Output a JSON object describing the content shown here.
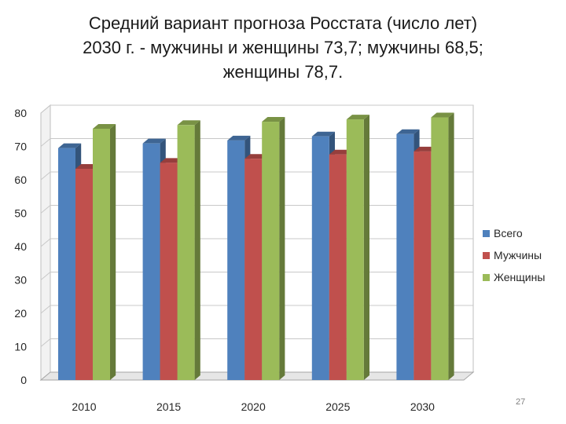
{
  "slide": {
    "title_lines": [
      "Средний вариант прогноза  Росстата (число лет)",
      "2030 г. - мужчины и женщины 73,7; мужчины  68,5;",
      "женщины   78,7."
    ],
    "page_number": "27"
  },
  "chart_data": {
    "type": "bar",
    "style": "3d-clustered-column",
    "categories": [
      "2010",
      "2015",
      "2020",
      "2025",
      "2030"
    ],
    "series": [
      {
        "name": "Всего",
        "color": "#4f81bd",
        "values": [
          69.5,
          70.9,
          71.8,
          73.0,
          73.7
        ]
      },
      {
        "name": "Мужчины",
        "color": "#c0504d",
        "values": [
          63.3,
          65.1,
          66.3,
          67.6,
          68.5
        ]
      },
      {
        "name": "Женщины",
        "color": "#9bbb59",
        "values": [
          75.3,
          76.4,
          77.4,
          78.1,
          78.7
        ]
      }
    ],
    "ylim": [
      0,
      80
    ],
    "yticks": [
      "0",
      "10",
      "20",
      "30",
      "40",
      "50",
      "60",
      "70",
      "80"
    ],
    "grid": true,
    "legend": "right",
    "title": "",
    "xlabel": "",
    "ylabel": ""
  }
}
